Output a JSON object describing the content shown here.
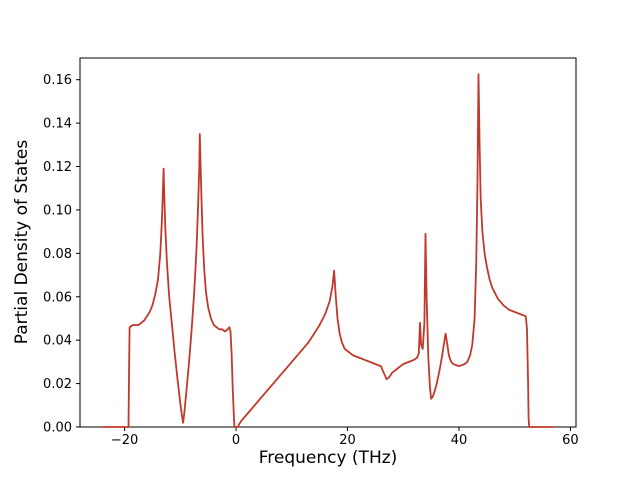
{
  "figure": {
    "background": "#ffffff"
  },
  "chart_data": {
    "type": "line",
    "title": "",
    "xlabel": "Frequency (THz)",
    "ylabel": "Partial Density of States",
    "xlim": [
      -28,
      61
    ],
    "ylim": [
      0,
      0.17
    ],
    "grid": false,
    "legend": "none",
    "line_color": "#c0392b",
    "line_width": 1.8,
    "x_ticks": [
      -20,
      0,
      20,
      40,
      60
    ],
    "x_tick_labels": [
      "−20",
      "0",
      "20",
      "40",
      "60"
    ],
    "y_ticks": [
      0.0,
      0.02,
      0.04,
      0.06,
      0.08,
      0.1,
      0.12,
      0.14,
      0.16
    ],
    "y_tick_labels": [
      "0.00",
      "0.02",
      "0.04",
      "0.06",
      "0.08",
      "0.10",
      "0.12",
      "0.14",
      "0.16"
    ],
    "series": [
      {
        "name": "partial-density-of-states",
        "x": [
          -24,
          -22,
          -20,
          -19.3,
          -19.2,
          -19.1,
          -18.5,
          -17.5,
          -16.5,
          -15.5,
          -15,
          -14.5,
          -14,
          -13.6,
          -13.3,
          -13.1,
          -13,
          -12.9,
          -12.7,
          -12.4,
          -12,
          -11.5,
          -11,
          -10.5,
          -10,
          -9.7,
          -9.5,
          -9.3,
          -9,
          -8.5,
          -8,
          -7.5,
          -7.1,
          -6.8,
          -6.6,
          -6.5,
          -6.4,
          -6.2,
          -6,
          -5.7,
          -5.4,
          -5,
          -4.5,
          -4,
          -3.5,
          -3,
          -2.5,
          -2,
          -1.5,
          -1.2,
          -1,
          -0.8,
          -0.6,
          -0.4,
          -0.3,
          0.3,
          0.5,
          1,
          2,
          3,
          4,
          5,
          6,
          7,
          8,
          9,
          10,
          11,
          12,
          13,
          14,
          15,
          16,
          16.8,
          17.3,
          17.6,
          17.9,
          18.2,
          18.6,
          19,
          19.5,
          20,
          21,
          22,
          23,
          24,
          25,
          26,
          26.5,
          27,
          27.5,
          28,
          29,
          30,
          31,
          32,
          32.5,
          32.8,
          33,
          33.2,
          33.5,
          33.8,
          34,
          34.2,
          34.5,
          34.8,
          35,
          35.3,
          35.7,
          36,
          36.5,
          37,
          37.4,
          37.6,
          37.9,
          38.2,
          38.6,
          39,
          40,
          41,
          41.5,
          42,
          42.4,
          42.8,
          43.1,
          43.3,
          43.5,
          43.7,
          43.9,
          44.2,
          44.6,
          45,
          45.5,
          46,
          47,
          48,
          49,
          50,
          51,
          52,
          52.2,
          52.4,
          52.5,
          52.6,
          54,
          56,
          57
        ],
        "y": [
          0,
          0,
          0,
          0,
          0.024,
          0.046,
          0.047,
          0.047,
          0.049,
          0.053,
          0.056,
          0.061,
          0.068,
          0.08,
          0.095,
          0.11,
          0.119,
          0.108,
          0.092,
          0.076,
          0.06,
          0.047,
          0.034,
          0.022,
          0.011,
          0.005,
          0.002,
          0.006,
          0.014,
          0.028,
          0.044,
          0.062,
          0.082,
          0.102,
          0.12,
          0.135,
          0.124,
          0.105,
          0.088,
          0.072,
          0.062,
          0.055,
          0.05,
          0.047,
          0.046,
          0.045,
          0.045,
          0.044,
          0.045,
          0.046,
          0.044,
          0.034,
          0.018,
          0.006,
          0,
          0,
          0.001,
          0.003,
          0.006,
          0.009,
          0.012,
          0.015,
          0.018,
          0.021,
          0.024,
          0.027,
          0.03,
          0.033,
          0.036,
          0.039,
          0.043,
          0.047,
          0.052,
          0.058,
          0.065,
          0.072,
          0.06,
          0.05,
          0.043,
          0.039,
          0.036,
          0.035,
          0.033,
          0.032,
          0.031,
          0.03,
          0.029,
          0.028,
          0.025,
          0.022,
          0.023,
          0.025,
          0.027,
          0.029,
          0.03,
          0.031,
          0.032,
          0.034,
          0.048,
          0.038,
          0.036,
          0.048,
          0.089,
          0.06,
          0.032,
          0.018,
          0.013,
          0.014,
          0.017,
          0.02,
          0.026,
          0.033,
          0.04,
          0.043,
          0.038,
          0.033,
          0.03,
          0.029,
          0.028,
          0.029,
          0.03,
          0.033,
          0.038,
          0.05,
          0.075,
          0.11,
          0.1625,
          0.13,
          0.105,
          0.09,
          0.08,
          0.074,
          0.068,
          0.064,
          0.059,
          0.056,
          0.054,
          0.053,
          0.052,
          0.051,
          0.045,
          0.02,
          0.004,
          0,
          0,
          0,
          0
        ]
      }
    ]
  }
}
